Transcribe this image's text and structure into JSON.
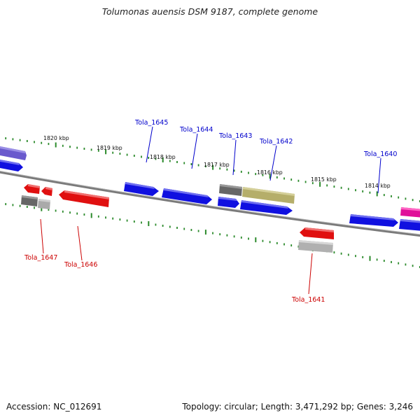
{
  "title": "Tolumonas auensis DSM 9187, complete genome",
  "footer": {
    "accession": "Accession: NC_012691",
    "topology": "Topology: circular; Length: 3,471,292 bp; Genes: 3,246"
  },
  "colors": {
    "backbone": "#7a7a7a",
    "ticks": "#2b8a2b",
    "forward_gene": "#1010e0",
    "reverse_gene": "#e01010",
    "gene_label_forward": "#0000cc",
    "gene_label_reverse": "#cc0000"
  },
  "kbp_labels": [
    "1820 kbp",
    "1819 kbp",
    "1818 kbp",
    "1817 kbp",
    "1816 kbp",
    "1815 kbp",
    "1814 kbp"
  ],
  "gene_labels": {
    "forward": [
      "Tola_1645",
      "Tola_1644",
      "Tola_1643",
      "Tola_1642",
      "Tola_1640"
    ],
    "reverse": [
      "Tola_1647",
      "Tola_1646",
      "Tola_1641"
    ]
  }
}
